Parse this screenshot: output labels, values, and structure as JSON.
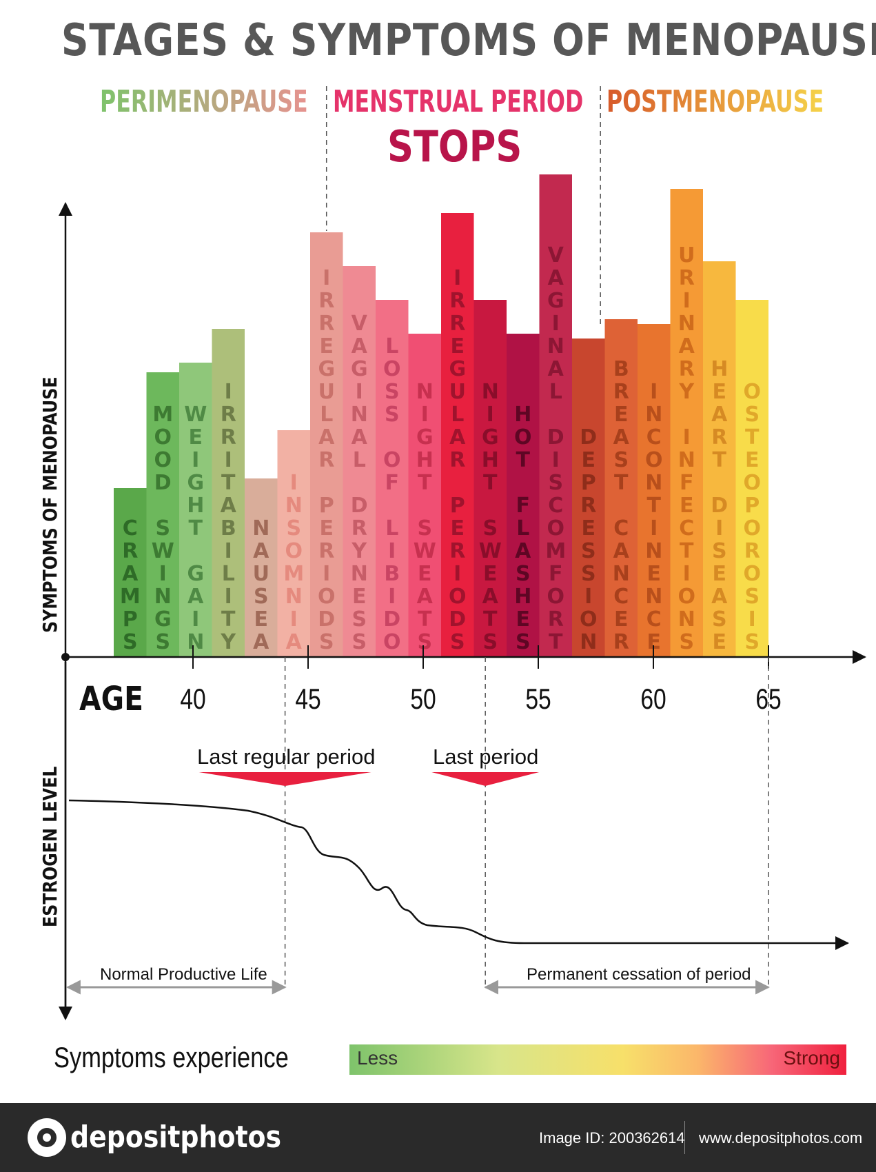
{
  "title": "STAGES & SYMPTOMS OF MENOPAUSE",
  "stages": {
    "perimenopause": "PERIMENOPAUSE",
    "menstrual_line1": "MENSTRUAL PERIOD",
    "menstrual_line2": "STOPS",
    "postmenopause": "POSTMENOPAUSE"
  },
  "colors": {
    "perimenopause_start": "#7ec36b",
    "perimenopause_end": "#e6928f",
    "menstrual": "#e5336a",
    "stops": "#b8144a",
    "postmenopause_start": "#d75a2a",
    "postmenopause_end": "#f5d34a"
  },
  "chart_data": {
    "type": "bar",
    "ylabel": "SYMPTOMS OF MENOPAUSE",
    "xlabel": "AGE",
    "x_ticks": [
      40,
      45,
      50,
      55,
      60,
      65
    ],
    "categories": [
      "CRAMPS",
      "MOOD SWINGS",
      "WEIGHT GAIN",
      "IRRITABILITY",
      "NAUSEA",
      "INSOMNIA",
      "IRREGULAR PERIODS",
      "VAGINAL DRYNESS",
      "LOSS OF LIBIDO",
      "NIGHT SWEATS",
      "IRREGULAR PERIODS",
      "NIGHT SWEATS",
      "HOT FLASHES",
      "VAGINAL DISCOMFORT",
      "DEPRESSION",
      "BREAST CANCER",
      "INCONTINENCE",
      "URINARY INFECTIONS",
      "HEART DISEASE",
      "OSTEOPOROSIS"
    ],
    "values": [
      35,
      59,
      61,
      68,
      37,
      47,
      88,
      81,
      74,
      67,
      92,
      74,
      67,
      100,
      66,
      70,
      69,
      97,
      82,
      74
    ],
    "bar_colors": [
      "#5aa84a",
      "#6db85c",
      "#8fc77a",
      "#adbf7a",
      "#d9ad9a",
      "#f2b1a4",
      "#e99c94",
      "#ef8a93",
      "#f26f86",
      "#f04f73",
      "#e8203f",
      "#c81840",
      "#b01245",
      "#c2294f",
      "#c8462e",
      "#de6236",
      "#e8742e",
      "#f59a35",
      "#f7b83e",
      "#f8dc4a"
    ],
    "label_colors": [
      "#2e6b27",
      "#3d7a32",
      "#4f8a45",
      "#6e7d48",
      "#a06a58",
      "#e58a7e",
      "#c9716a",
      "#c75d68",
      "#c94463",
      "#c7304f",
      "#a0132d",
      "#8a0d2a",
      "#5e0624",
      "#8c1634",
      "#8f2d1a",
      "#a8401c",
      "#b84f1b",
      "#d06c1c",
      "#d68a23",
      "#e0a82a"
    ],
    "ages_per_bar": 2,
    "stage_divider_ages": [
      45.8,
      57.7
    ]
  },
  "estrogen": {
    "ylabel": "ESTROGEN LEVEL",
    "markers": [
      {
        "label": "Last regular period",
        "age": 44
      },
      {
        "label": "Last period",
        "age": 52.7
      }
    ],
    "ranges": [
      {
        "label": "Normal Productive Life",
        "start": "axis",
        "end_age": 44
      },
      {
        "label": "Permanent cessation of period",
        "start_age": 52.7,
        "end_age": 65
      }
    ]
  },
  "legend": {
    "title": "Symptoms experience",
    "less": "Less",
    "strong": "Strong"
  },
  "footer": {
    "brand": "depositphotos",
    "image_id": "Image ID: 200362614",
    "url": "www.depositphotos.com"
  }
}
